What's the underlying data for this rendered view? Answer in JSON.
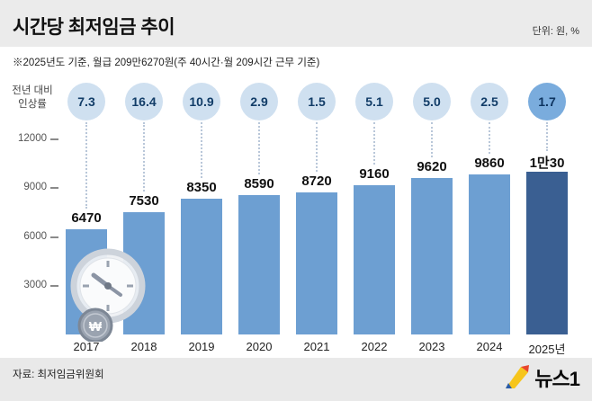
{
  "header": {
    "title": "시간당 최저임금 추이",
    "unit": "단위: 원, %",
    "subtitle": "※2025년도 기준, 월급 209만6270원(주 40시간·월 209시간 근무 기준)"
  },
  "chart_data": {
    "type": "bar",
    "title": "시간당 최저임금 추이",
    "categories": [
      "2017",
      "2018",
      "2019",
      "2020",
      "2021",
      "2022",
      "2023",
      "2024",
      "2025년"
    ],
    "series": [
      {
        "name": "시간당 최저임금(원)",
        "values": [
          6470,
          7530,
          8350,
          8590,
          8720,
          9160,
          9620,
          9860,
          10030
        ]
      },
      {
        "name": "전년 대비 인상률(%)",
        "values": [
          7.3,
          16.4,
          10.9,
          2.9,
          1.5,
          5.1,
          5.0,
          2.5,
          1.7
        ]
      }
    ],
    "bar_labels": [
      "6470",
      "7530",
      "8350",
      "8590",
      "8720",
      "9160",
      "9620",
      "9860",
      "1만30"
    ],
    "rate_labels": [
      "7.3",
      "16.4",
      "10.9",
      "2.9",
      "1.5",
      "5.1",
      "5.0",
      "2.5",
      "1.7"
    ],
    "rate_caption_line1": "전년 대비",
    "rate_caption_line2": "인상률",
    "ytick_labels": [
      "12000",
      "9000",
      "6000",
      "3000"
    ],
    "ytick_values": [
      12000,
      9000,
      6000,
      3000
    ],
    "ylim": [
      0,
      12000
    ],
    "grid": false,
    "legend": "none",
    "colors": {
      "bar": "#6d9fd2",
      "bar_last": "#3a5f92",
      "circle": "#cfe0f0",
      "circle_last": "#7aacdd",
      "circle_text": "#123d68"
    }
  },
  "icons": {
    "clock": "clock-won-icon",
    "won_symbol": "₩"
  },
  "footer": {
    "source": "자료: 최저임금위원회",
    "logo_text": "뉴스1"
  }
}
